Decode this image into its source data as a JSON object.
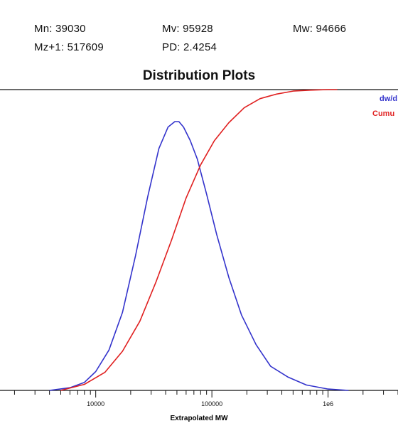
{
  "stats": {
    "mn": "Mn: 39030",
    "mv": "Mv: 95928",
    "mw": "Mw: 94666",
    "mz1": "Mz+1: 517609",
    "pd": "PD: 2.4254"
  },
  "colors": {
    "dw": "#3333cc",
    "cumulative": "#e02020",
    "axis": "#111111"
  },
  "chart_data": {
    "type": "line",
    "title": "Distribution Plots",
    "xlabel": "Extrapolated MW",
    "ylabel": "",
    "x_scale": "log",
    "xlim": [
      1500,
      4000000
    ],
    "x_ticks": [
      {
        "value": 10000,
        "label": "10000"
      },
      {
        "value": 100000,
        "label": "100000"
      },
      {
        "value": 1000000,
        "label": "1e6"
      }
    ],
    "legend_position": "top-right",
    "series": [
      {
        "name": "dw/d",
        "color": "#3333cc",
        "x": [
          4000,
          6000,
          8000,
          10000,
          13000,
          17000,
          22000,
          28000,
          35000,
          42000,
          48000,
          52000,
          57000,
          65000,
          75000,
          90000,
          110000,
          140000,
          180000,
          240000,
          320000,
          450000,
          650000,
          1000000,
          1500000
        ],
        "y": [
          0.0,
          0.01,
          0.03,
          0.07,
          0.15,
          0.29,
          0.5,
          0.72,
          0.9,
          0.98,
          1.0,
          1.0,
          0.98,
          0.93,
          0.86,
          0.73,
          0.58,
          0.42,
          0.28,
          0.17,
          0.09,
          0.05,
          0.02,
          0.005,
          0.0
        ]
      },
      {
        "name": "Cumu",
        "color": "#e02020",
        "x": [
          5000,
          8000,
          12000,
          17000,
          24000,
          33000,
          45000,
          60000,
          80000,
          105000,
          140000,
          190000,
          260000,
          360000,
          500000,
          700000,
          1000000,
          1200000
        ],
        "y": [
          0.0,
          0.02,
          0.06,
          0.13,
          0.23,
          0.36,
          0.5,
          0.64,
          0.75,
          0.83,
          0.89,
          0.94,
          0.97,
          0.985,
          0.995,
          0.998,
          1.0,
          1.0
        ]
      }
    ]
  }
}
